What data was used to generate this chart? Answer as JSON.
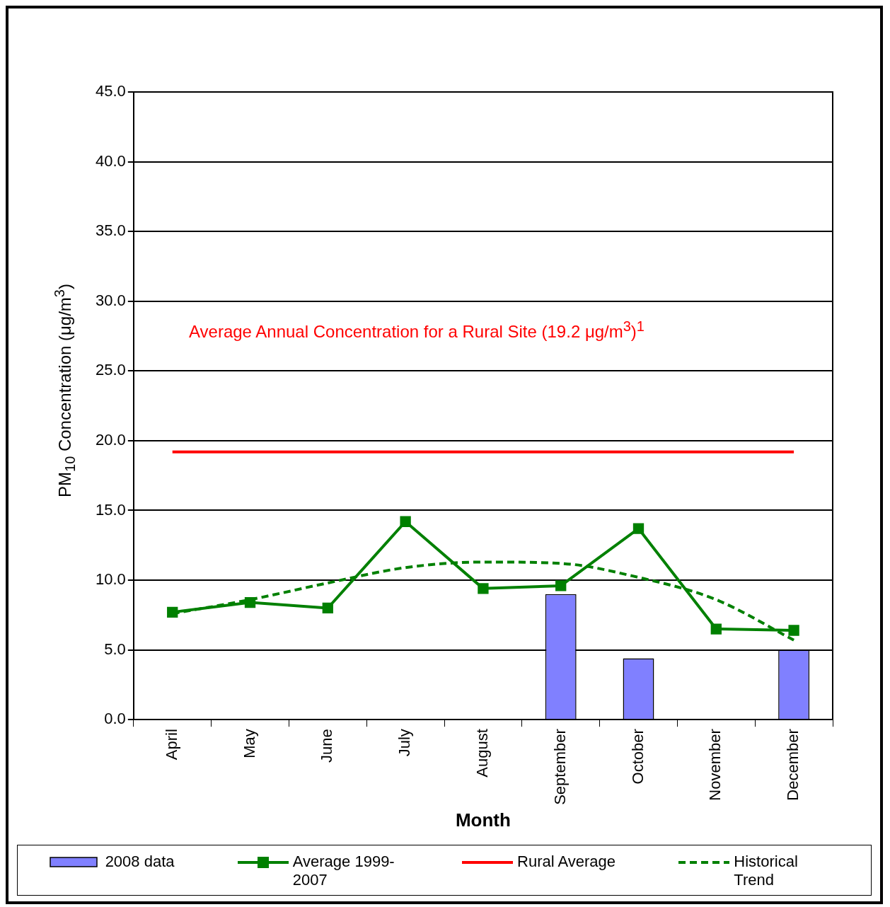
{
  "chart_data": {
    "type": "bar",
    "xlabel": "Month",
    "ylabel": "PM$_{10}$ Concentration (μg/m$^{3}$)",
    "categories": [
      "April",
      "May",
      "June",
      "July",
      "August",
      "September",
      "October",
      "November",
      "December"
    ],
    "series": [
      {
        "name": "2008 data",
        "type": "bar",
        "color": "#8080ff",
        "values": [
          null,
          null,
          null,
          null,
          0,
          9.0,
          4.4,
          0,
          5.0
        ]
      },
      {
        "name": "Average 1999-2007",
        "type": "line",
        "color": "#008000",
        "marker": "square",
        "line_style": "solid",
        "values": [
          7.7,
          8.4,
          8.0,
          14.2,
          9.4,
          9.6,
          13.7,
          6.5,
          6.4
        ]
      },
      {
        "name": "Rural Average",
        "type": "line",
        "color": "#ff0000",
        "marker": "none",
        "line_style": "solid",
        "values": [
          19.2,
          19.2,
          19.2,
          19.2,
          19.2,
          19.2,
          19.2,
          19.2,
          19.2
        ]
      },
      {
        "name": "Historical Trend",
        "type": "line",
        "color": "#008000",
        "marker": "none",
        "line_style": "dashed",
        "values": [
          7.6,
          8.6,
          9.8,
          10.9,
          11.3,
          11.2,
          10.2,
          8.6,
          5.7
        ]
      }
    ],
    "annotations": [
      "Average Annual Concentration for a Rural Site (19.2 μg/m$^{3}$)$^{1}$"
    ],
    "ylim": [
      0,
      45
    ],
    "yticks": [
      {
        "value": 0,
        "label": "0.0"
      },
      {
        "value": 5,
        "label": "5.0"
      },
      {
        "value": 10,
        "label": "10.0"
      },
      {
        "value": 15,
        "label": "15.0"
      },
      {
        "value": 20,
        "label": "20.0"
      },
      {
        "value": 25,
        "label": "25.0"
      },
      {
        "value": 30,
        "label": "30.0"
      },
      {
        "value": 35,
        "label": "35.0"
      },
      {
        "value": 40,
        "label": "40.0"
      },
      {
        "value": 45,
        "label": "45.0"
      }
    ],
    "grid": "y",
    "legend": "bottom"
  }
}
